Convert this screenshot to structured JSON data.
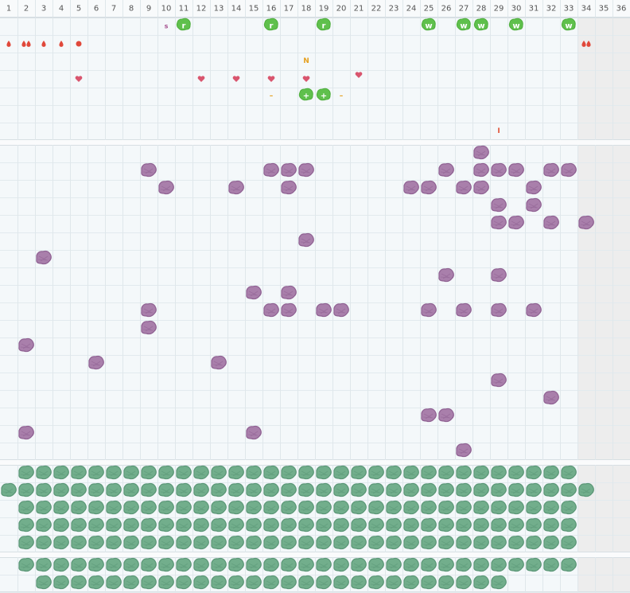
{
  "columns": [
    1,
    2,
    3,
    4,
    5,
    6,
    7,
    8,
    9,
    10,
    11,
    12,
    13,
    14,
    15,
    16,
    17,
    18,
    19,
    20,
    21,
    22,
    23,
    24,
    25,
    26,
    27,
    28,
    29,
    30,
    31,
    32,
    33,
    34,
    35,
    36
  ],
  "top_section": {
    "labels": [
      {
        "col": 10,
        "row": 0,
        "style": "small-purple",
        "text": "s"
      },
      {
        "col": 11,
        "row": 0,
        "style": "badge",
        "text": "r"
      },
      {
        "col": 16,
        "row": 0,
        "style": "badge",
        "text": "r"
      },
      {
        "col": 19,
        "row": 0,
        "style": "badge",
        "text": "r"
      },
      {
        "col": 25,
        "row": 0,
        "style": "badge",
        "text": "w"
      },
      {
        "col": 27,
        "row": 0,
        "style": "badge",
        "text": "w"
      },
      {
        "col": 28,
        "row": 0,
        "style": "badge",
        "text": "w"
      },
      {
        "col": 30,
        "row": 0,
        "style": "badge",
        "text": "w"
      },
      {
        "col": 33,
        "row": 0,
        "style": "badge",
        "text": "w"
      },
      {
        "col": 18,
        "row": 2,
        "style": "orange",
        "text": "N"
      },
      {
        "col": 16,
        "row": 4,
        "style": "orange",
        "text": "–"
      },
      {
        "col": 18,
        "row": 4,
        "style": "badge",
        "text": "+"
      },
      {
        "col": 19,
        "row": 4,
        "style": "badge",
        "text": "+"
      },
      {
        "col": 20,
        "row": 4,
        "style": "orange",
        "text": "–"
      },
      {
        "col": 29,
        "row": 6,
        "style": "red",
        "text": "I"
      }
    ],
    "icons": [
      {
        "col": 1,
        "row": 1,
        "icon": "drop"
      },
      {
        "col": 2,
        "row": 1,
        "icon": "drops"
      },
      {
        "col": 3,
        "row": 1,
        "icon": "drop"
      },
      {
        "col": 4,
        "row": 1,
        "icon": "drop"
      },
      {
        "col": 5,
        "row": 1,
        "icon": "dot"
      },
      {
        "col": 34,
        "row": 1,
        "icon": "drops"
      },
      {
        "col": 5,
        "row": 3,
        "icon": "heart"
      },
      {
        "col": 12,
        "row": 3,
        "icon": "heart"
      },
      {
        "col": 14,
        "row": 3,
        "icon": "heart"
      },
      {
        "col": 16,
        "row": 3,
        "icon": "heart"
      },
      {
        "col": 18,
        "row": 3,
        "icon": "heart"
      },
      {
        "col": 21,
        "row": 3,
        "icon": "heart-high"
      }
    ]
  },
  "middle_section": {
    "cells": [
      [
        28,
        0
      ],
      [
        9,
        1
      ],
      [
        16,
        1
      ],
      [
        17,
        1
      ],
      [
        18,
        1
      ],
      [
        26,
        1
      ],
      [
        28,
        1
      ],
      [
        29,
        1
      ],
      [
        30,
        1
      ],
      [
        32,
        1
      ],
      [
        33,
        1
      ],
      [
        10,
        2
      ],
      [
        14,
        2
      ],
      [
        17,
        2
      ],
      [
        24,
        2
      ],
      [
        25,
        2
      ],
      [
        27,
        2
      ],
      [
        28,
        2
      ],
      [
        31,
        2
      ],
      [
        29,
        3
      ],
      [
        31,
        3
      ],
      [
        29,
        4
      ],
      [
        30,
        4
      ],
      [
        32,
        4
      ],
      [
        34,
        4
      ],
      [
        18,
        5
      ],
      [
        3,
        6
      ],
      [
        26,
        7
      ],
      [
        29,
        7
      ],
      [
        15,
        8
      ],
      [
        17,
        8
      ],
      [
        9,
        9
      ],
      [
        16,
        9
      ],
      [
        17,
        9
      ],
      [
        19,
        9
      ],
      [
        20,
        9
      ],
      [
        25,
        9
      ],
      [
        27,
        9
      ],
      [
        29,
        9
      ],
      [
        31,
        9
      ],
      [
        9,
        10
      ],
      [
        2,
        11
      ],
      [
        6,
        12
      ],
      [
        13,
        12
      ],
      [
        29,
        13
      ],
      [
        32,
        14
      ],
      [
        25,
        15
      ],
      [
        26,
        15
      ],
      [
        2,
        16
      ],
      [
        15,
        16
      ],
      [
        27,
        17
      ]
    ]
  },
  "lower_section": {
    "ranges": [
      {
        "row": 0,
        "from": 2,
        "to": 33
      },
      {
        "row": 1,
        "from": 1,
        "to": 34
      },
      {
        "row": 2,
        "from": 2,
        "to": 33
      },
      {
        "row": 3,
        "from": 2,
        "to": 33
      },
      {
        "row": 4,
        "from": 2,
        "to": 33
      }
    ]
  },
  "bottom_section": {
    "ranges": [
      {
        "row": 0,
        "from": 2,
        "to": 33
      },
      {
        "row": 1,
        "from": 3,
        "to": 29
      }
    ]
  }
}
